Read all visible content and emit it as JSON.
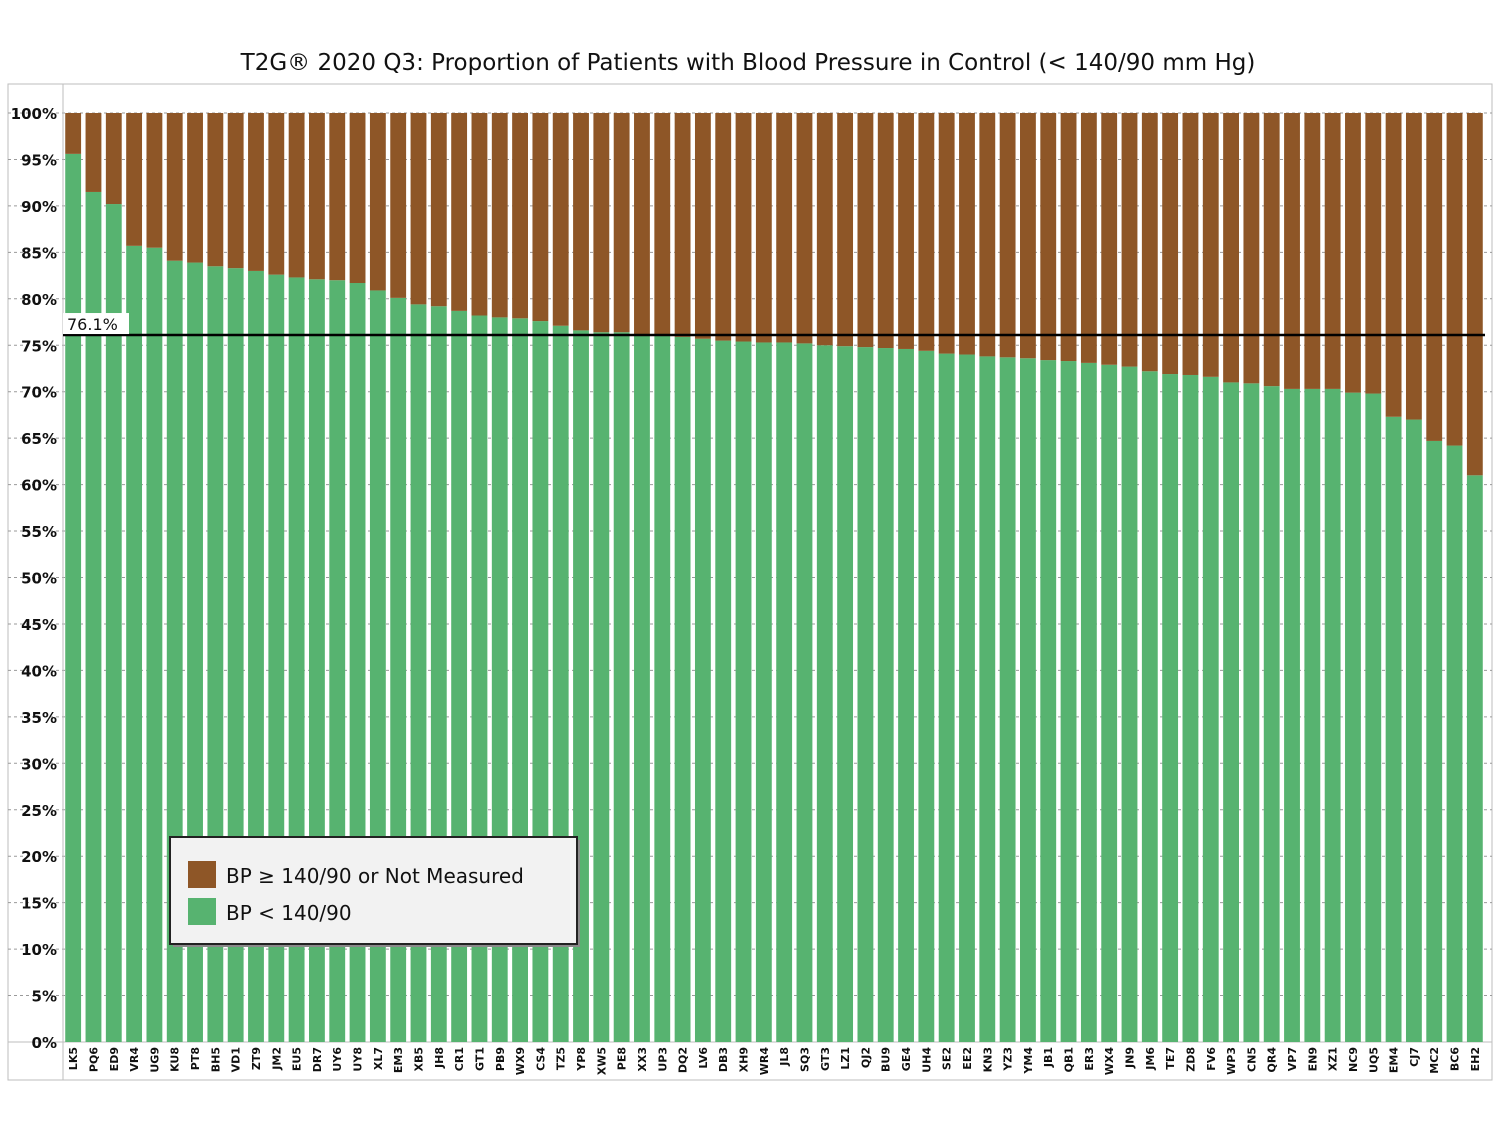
{
  "chart_data": {
    "type": "bar",
    "stacked": true,
    "title": "T2G® 2020 Q3: Proportion of Patients with Blood Pressure in Control (< 140/90 mm Hg)",
    "xlabel": "",
    "ylabel": "",
    "ylim": [
      0,
      100
    ],
    "grid": true,
    "legend_placement": "bottom-left",
    "y_ticks": [
      "0%",
      "5%",
      "10%",
      "15%",
      "20%",
      "25%",
      "30%",
      "35%",
      "40%",
      "45%",
      "50%",
      "55%",
      "60%",
      "65%",
      "70%",
      "75%",
      "80%",
      "85%",
      "90%",
      "95%",
      "100%"
    ],
    "categories": [
      "LK5",
      "PQ6",
      "ED9",
      "VR4",
      "UG9",
      "KU8",
      "PT8",
      "BH5",
      "VD1",
      "ZT9",
      "JM2",
      "EU5",
      "DR7",
      "UY6",
      "UY8",
      "XL7",
      "EM3",
      "XB5",
      "JH8",
      "CR1",
      "GT1",
      "PB9",
      "WX9",
      "CS4",
      "TZ5",
      "YP8",
      "XW5",
      "PE8",
      "XX3",
      "UP3",
      "DQ2",
      "LV6",
      "DB3",
      "XH9",
      "WR4",
      "JL8",
      "SQ3",
      "GT3",
      "LZ1",
      "QJ2",
      "BU9",
      "GE4",
      "UH4",
      "SE2",
      "EE2",
      "KN3",
      "YZ3",
      "YM4",
      "JB1",
      "QB1",
      "ER3",
      "WX4",
      "JN9",
      "JM6",
      "TE7",
      "ZD8",
      "FV6",
      "WP3",
      "CN5",
      "QR4",
      "VP7",
      "EN9",
      "XZ1",
      "NC9",
      "UQ5",
      "EM4",
      "CJ7",
      "MC2",
      "BC6",
      "EH2"
    ],
    "series": [
      {
        "name": "BP < 140/90",
        "color": "#57b370",
        "values": [
          95.6,
          91.5,
          90.2,
          85.7,
          85.5,
          84.1,
          83.9,
          83.5,
          83.3,
          83.0,
          82.6,
          82.3,
          82.1,
          82.0,
          81.7,
          80.9,
          80.1,
          79.4,
          79.2,
          78.7,
          78.2,
          78.0,
          77.9,
          77.6,
          77.1,
          76.6,
          76.4,
          76.4,
          76.1,
          76.0,
          75.9,
          75.7,
          75.5,
          75.4,
          75.3,
          75.3,
          75.2,
          75.0,
          74.9,
          74.8,
          74.7,
          74.6,
          74.4,
          74.1,
          74.0,
          73.8,
          73.7,
          73.6,
          73.4,
          73.3,
          73.1,
          72.9,
          72.7,
          72.2,
          71.9,
          71.8,
          71.6,
          71.0,
          70.9,
          70.6,
          70.3,
          70.3,
          70.3,
          69.9,
          69.8,
          67.3,
          67.0,
          64.7,
          64.2,
          61.0
        ]
      },
      {
        "name": "BP ≥ 140/90 or Not Measured",
        "color": "#8e5627",
        "values": [
          4.4,
          8.5,
          9.8,
          14.3,
          14.5,
          15.9,
          16.1,
          16.5,
          16.7,
          17.0,
          17.4,
          17.7,
          17.9,
          18.0,
          18.3,
          19.1,
          19.9,
          20.6,
          20.8,
          21.3,
          21.8,
          22.0,
          22.1,
          22.4,
          22.9,
          23.4,
          23.6,
          23.6,
          23.9,
          24.0,
          24.1,
          24.3,
          24.5,
          24.6,
          24.7,
          24.7,
          24.8,
          25.0,
          25.1,
          25.2,
          25.3,
          25.4,
          25.6,
          25.9,
          26.0,
          26.2,
          26.3,
          26.4,
          26.6,
          26.7,
          26.9,
          27.1,
          27.3,
          27.8,
          28.1,
          28.2,
          28.4,
          29.0,
          29.1,
          29.4,
          29.7,
          29.7,
          29.7,
          30.1,
          30.2,
          32.7,
          33.0,
          35.3,
          35.8,
          39.0
        ]
      }
    ],
    "reference_line": {
      "value": 76.1,
      "label": "76.1%"
    },
    "legend": [
      {
        "label": "BP ≥ 140/90 or Not Measured",
        "color": "#8e5627"
      },
      {
        "label": "BP < 140/90",
        "color": "#57b370"
      }
    ]
  }
}
